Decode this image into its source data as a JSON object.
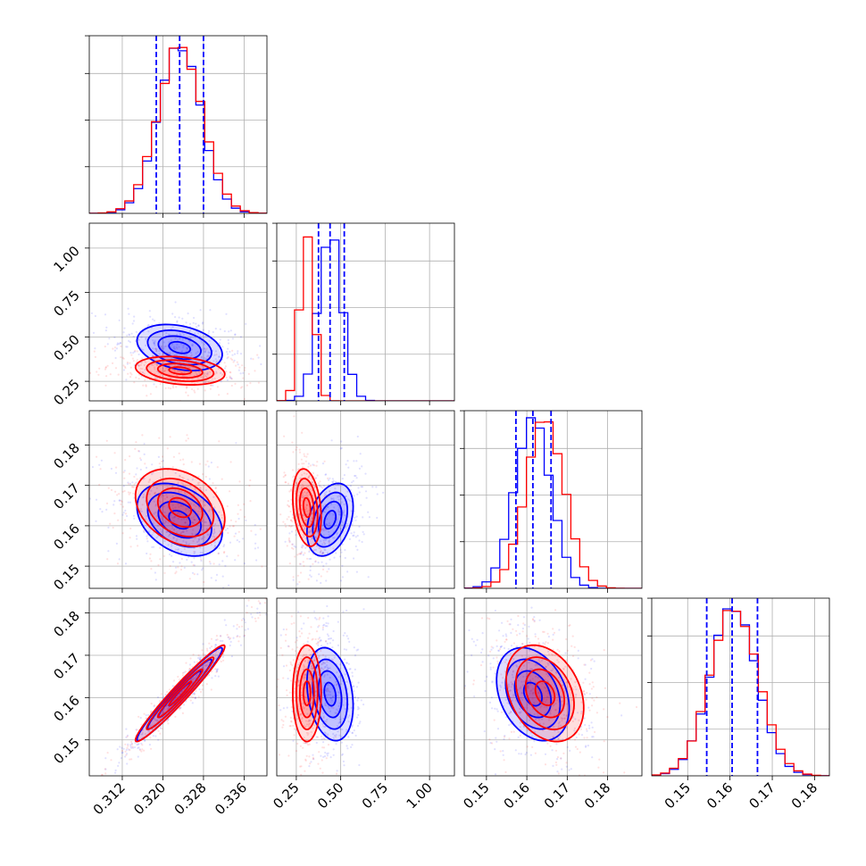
{
  "chart_data": {
    "type": "corner",
    "grid": true,
    "series": [
      {
        "name": "",
        "color": "#0000ff"
      },
      {
        "name": "",
        "color": "#ff0000"
      }
    ],
    "quantile_line_color": "#0000ff",
    "params": [
      {
        "range": [
          0.3055,
          0.3405
        ],
        "ticks": [
          0.312,
          0.32,
          0.328,
          0.336
        ],
        "tick_labels": [
          "0.312",
          "0.320",
          "0.328",
          "0.336"
        ],
        "mean_blue": 0.3233,
        "sd_blue": 0.0042,
        "mean_red": 0.3234,
        "sd_red": 0.0044,
        "quantiles": [
          0.3187,
          0.3233,
          0.328
        ]
      },
      {
        "range": [
          0.14,
          1.14
        ],
        "ticks": [
          0.25,
          0.5,
          0.75,
          1.0
        ],
        "tick_labels": [
          "0.25",
          "0.50",
          "0.75",
          "1.00"
        ],
        "mean_blue": 0.44,
        "sd_blue": 0.065,
        "mean_red": 0.31,
        "sd_red": 0.04,
        "quantiles": [
          0.375,
          0.44,
          0.52
        ]
      },
      {
        "range": [
          0.1445,
          0.1885
        ],
        "ticks": [
          0.15,
          0.16,
          0.17,
          0.18
        ],
        "tick_labels": [
          "0.15",
          "0.16",
          "0.17",
          "0.18"
        ],
        "mean_blue": 0.1615,
        "sd_blue": 0.0045,
        "mean_red": 0.1645,
        "sd_red": 0.0048,
        "quantiles": [
          0.1573,
          0.1615,
          0.166
        ]
      },
      {
        "range": [
          0.1415,
          0.1835
        ],
        "ticks": [
          0.15,
          0.16,
          0.17,
          0.18
        ],
        "tick_labels": [
          "0.15",
          "0.16",
          "0.17",
          "0.18"
        ],
        "mean_blue": 0.1608,
        "sd_blue": 0.0055,
        "mean_red": 0.161,
        "sd_red": 0.0057,
        "quantiles": [
          0.1545,
          0.1605,
          0.1665
        ]
      }
    ],
    "correlations_blue": {
      "1-0": -0.3,
      "2-0": -0.35,
      "2-1": 0.35,
      "3-0": 0.97,
      "3-1": -0.25,
      "3-2": -0.3
    },
    "correlations_red": {
      "1-0": -0.25,
      "2-0": -0.3,
      "2-1": -0.25,
      "3-0": 0.97,
      "3-1": 0.0,
      "3-2": -0.3
    },
    "contour_levels_sigma": [
      0.5,
      1.0,
      1.5,
      2.0
    ],
    "hist_bins": 20
  }
}
